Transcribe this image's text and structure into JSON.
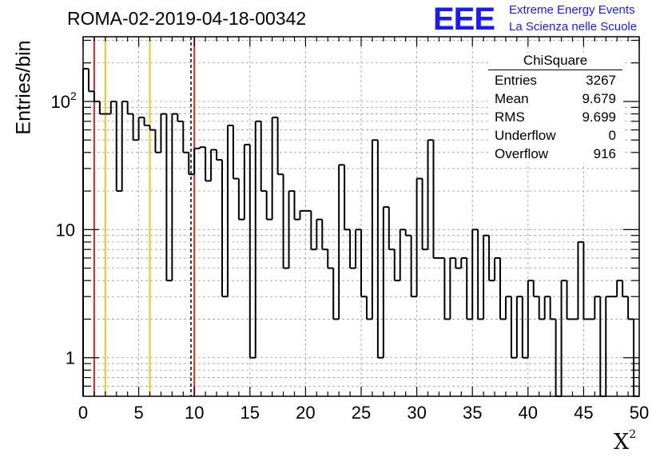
{
  "title": "ROMA-02-2019-04-18-00342",
  "logo": {
    "mark": "EEE",
    "line1": "Extreme Energy Events",
    "line2": "La Scienza nelle Scuole"
  },
  "ylabel": "Entries/bin",
  "xlabel": "X",
  "xlabel_sup": "2",
  "stats_box": {
    "title": "ChiSquare",
    "rows": [
      {
        "label": "Entries",
        "value": "3267"
      },
      {
        "label": "Mean",
        "value": "9.679"
      },
      {
        "label": "RMS",
        "value": "9.699"
      },
      {
        "label": "Underflow",
        "value": "0"
      },
      {
        "label": "Overflow",
        "value": "916"
      }
    ]
  },
  "chart_data": {
    "type": "bar",
    "style": "step-histogram",
    "y_scale": "log",
    "xlim": [
      0,
      50
    ],
    "ylim": [
      0.5,
      320
    ],
    "grid": true,
    "bin_width": 0.5,
    "x_ticks": [
      "0",
      "5",
      "10",
      "15",
      "20",
      "25",
      "30",
      "35",
      "40",
      "45",
      "50"
    ],
    "y_ticks": [
      {
        "value": 1,
        "label": "1"
      },
      {
        "value": 10,
        "label": "10"
      },
      {
        "value": 100,
        "label": "10",
        "sup": "2"
      }
    ],
    "values": [
      180,
      120,
      100,
      80,
      80,
      100,
      20,
      100,
      80,
      50,
      75,
      65,
      60,
      40,
      80,
      4,
      80,
      70,
      40,
      27,
      43,
      44,
      24,
      42,
      35,
      3,
      65,
      25,
      12,
      46,
      1,
      70,
      20,
      12,
      75,
      27,
      5,
      20,
      12,
      14,
      14,
      7,
      12,
      7,
      5,
      2,
      32,
      10,
      5,
      10,
      3,
      2,
      50,
      1,
      15,
      7,
      4,
      10,
      9,
      3,
      25,
      7,
      50,
      6,
      6,
      2,
      6,
      5,
      6,
      2,
      10,
      2,
      9,
      4,
      6,
      2,
      3,
      1,
      3,
      1,
      4,
      3,
      2,
      3,
      2,
      0,
      4,
      2,
      2,
      8,
      2,
      2,
      3,
      0,
      3,
      3,
      4,
      3,
      2,
      0
    ],
    "reference_lines": [
      {
        "x": 1,
        "color": "#e8231f",
        "style": "solid"
      },
      {
        "x": 2,
        "color": "#f5c31a",
        "style": "solid"
      },
      {
        "x": 6,
        "color": "#f5c31a",
        "style": "solid"
      },
      {
        "x": 9.7,
        "color": "#000000",
        "style": "dashed"
      },
      {
        "x": 10,
        "color": "#e8231f",
        "style": "solid"
      }
    ]
  },
  "colors": {
    "histogram": "#000000",
    "grid": "#9a9a9a",
    "logo": "#1a1aff"
  }
}
